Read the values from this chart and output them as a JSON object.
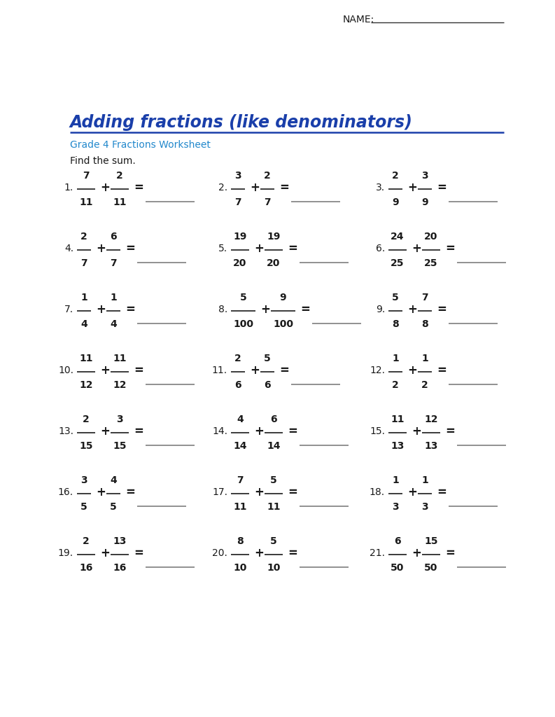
{
  "title": "Adding fractions (like denominators)",
  "subtitle": "Grade 4 Fractions Worksheet",
  "instruction": "Find the sum.",
  "name_label": "NAME:  ",
  "title_color": "#1a3faa",
  "subtitle_color": "#2288cc",
  "bg_color": "#ffffff",
  "text_color": "#1a1a1a",
  "problems": [
    {
      "num": 1,
      "n1": "7",
      "d1": "11",
      "n2": "2",
      "d2": "11"
    },
    {
      "num": 2,
      "n1": "3",
      "d1": "7",
      "n2": "2",
      "d2": "7"
    },
    {
      "num": 3,
      "n1": "2",
      "d1": "9",
      "n2": "3",
      "d2": "9"
    },
    {
      "num": 4,
      "n1": "2",
      "d1": "7",
      "n2": "6",
      "d2": "7"
    },
    {
      "num": 5,
      "n1": "19",
      "d1": "20",
      "n2": "19",
      "d2": "20"
    },
    {
      "num": 6,
      "n1": "24",
      "d1": "25",
      "n2": "20",
      "d2": "25"
    },
    {
      "num": 7,
      "n1": "1",
      "d1": "4",
      "n2": "1",
      "d2": "4"
    },
    {
      "num": 8,
      "n1": "5",
      "d1": "100",
      "n2": "9",
      "d2": "100"
    },
    {
      "num": 9,
      "n1": "5",
      "d1": "8",
      "n2": "7",
      "d2": "8"
    },
    {
      "num": 10,
      "n1": "11",
      "d1": "12",
      "n2": "11",
      "d2": "12"
    },
    {
      "num": 11,
      "n1": "2",
      "d1": "6",
      "n2": "5",
      "d2": "6"
    },
    {
      "num": 12,
      "n1": "1",
      "d1": "2",
      "n2": "1",
      "d2": "2"
    },
    {
      "num": 13,
      "n1": "2",
      "d1": "15",
      "n2": "3",
      "d2": "15"
    },
    {
      "num": 14,
      "n1": "4",
      "d1": "14",
      "n2": "6",
      "d2": "14"
    },
    {
      "num": 15,
      "n1": "11",
      "d1": "13",
      "n2": "12",
      "d2": "13"
    },
    {
      "num": 16,
      "n1": "3",
      "d1": "5",
      "n2": "4",
      "d2": "5"
    },
    {
      "num": 17,
      "n1": "7",
      "d1": "11",
      "n2": "5",
      "d2": "11"
    },
    {
      "num": 18,
      "n1": "1",
      "d1": "3",
      "n2": "1",
      "d2": "3"
    },
    {
      "num": 19,
      "n1": "2",
      "d1": "16",
      "n2": "13",
      "d2": "16"
    },
    {
      "num": 20,
      "n1": "8",
      "d1": "10",
      "n2": "5",
      "d2": "10"
    },
    {
      "num": 21,
      "n1": "6",
      "d1": "50",
      "n2": "15",
      "d2": "50"
    }
  ],
  "line_color": "#aaaaaa",
  "answer_line_color": "#888888"
}
